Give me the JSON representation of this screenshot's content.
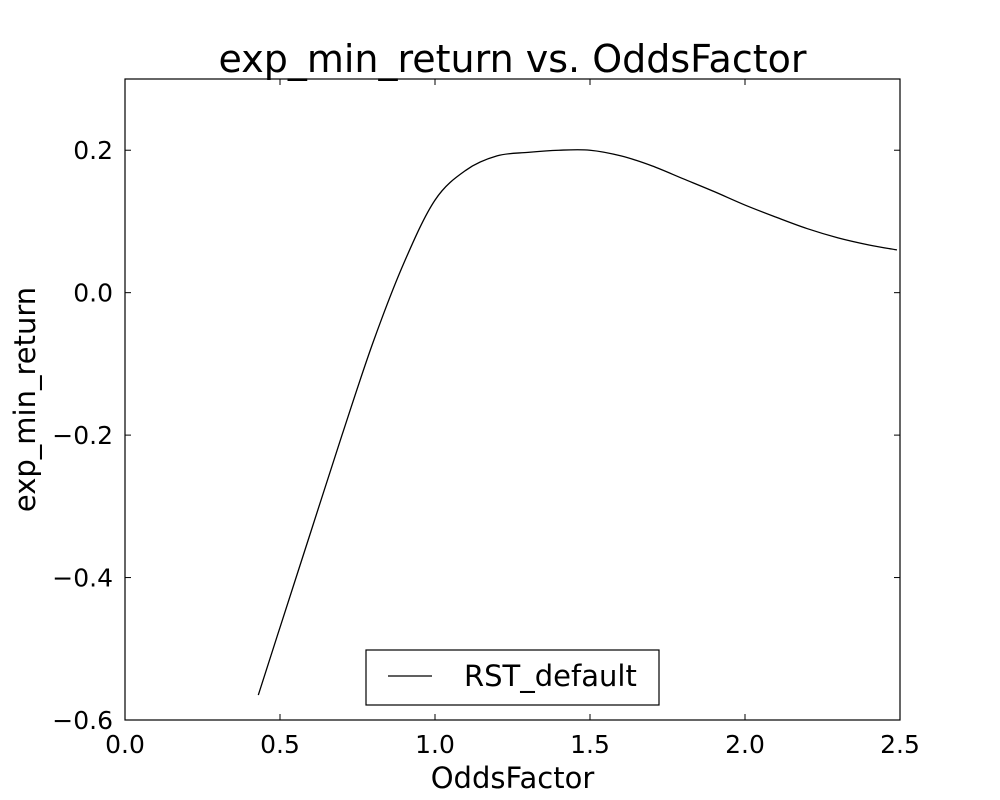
{
  "chart_data": {
    "type": "line",
    "title": "exp_min_return vs. OddsFactor",
    "xlabel": "OddsFactor",
    "ylabel": "exp_min_return",
    "xlim": [
      0.0,
      2.5
    ],
    "ylim": [
      -0.6,
      0.3
    ],
    "xticks": [
      0.0,
      0.5,
      1.0,
      1.5,
      2.0,
      2.5
    ],
    "xtick_labels": [
      "0.0",
      "0.5",
      "1.0",
      "1.5",
      "2.0",
      "2.5"
    ],
    "yticks": [
      -0.6,
      -0.4,
      -0.2,
      0.0,
      0.2
    ],
    "ytick_labels": [
      "−0.6",
      "−0.4",
      "−0.2",
      "0.0",
      "0.2"
    ],
    "grid": false,
    "legend": {
      "position": "lower center"
    },
    "series": [
      {
        "name": "RST_default",
        "color": "#000000",
        "x": [
          0.43,
          0.5,
          0.6,
          0.7,
          0.8,
          0.9,
          1.0,
          1.1,
          1.2,
          1.3,
          1.4,
          1.5,
          1.6,
          1.7,
          1.8,
          1.9,
          2.0,
          2.1,
          2.2,
          2.3,
          2.4,
          2.49
        ],
        "y": [
          -0.565,
          -0.47,
          -0.335,
          -0.2,
          -0.07,
          0.042,
          0.13,
          0.172,
          0.192,
          0.197,
          0.2,
          0.2,
          0.192,
          0.178,
          0.16,
          0.142,
          0.123,
          0.106,
          0.09,
          0.077,
          0.067,
          0.06
        ]
      }
    ]
  }
}
